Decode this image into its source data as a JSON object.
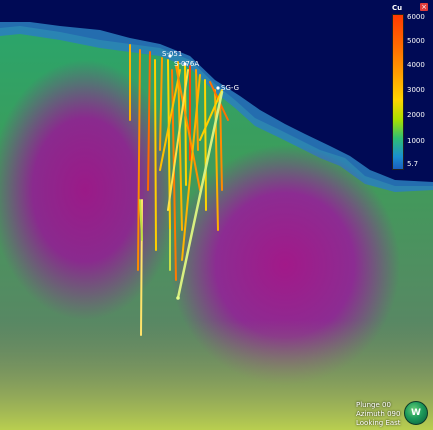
{
  "legend": {
    "title": "Cu",
    "close_label": "×",
    "ticks": [
      {
        "label": "6000",
        "value": 6000
      },
      {
        "label": "5000",
        "value": 5000
      },
      {
        "label": "4000",
        "value": 4000
      },
      {
        "label": "3000",
        "value": 3000
      },
      {
        "label": "2000",
        "value": 2000
      },
      {
        "label": "1000",
        "value": 1000
      },
      {
        "label": "5.7",
        "value": 5.7
      }
    ],
    "colors": [
      "#ff3a00",
      "#ff6a00",
      "#ff9d00",
      "#ffd400",
      "#a8e000",
      "#2fbf73",
      "#1a8fd0",
      "#1a5fc0"
    ]
  },
  "hole_labels": [
    {
      "label": "S-051"
    },
    {
      "label": "S-076A"
    },
    {
      "label": "SG-G"
    }
  ],
  "view": {
    "plunge": "Plunge 00",
    "azimuth": "Azimuth 090",
    "looking": "Looking East"
  },
  "logo": {
    "label": "W"
  }
}
